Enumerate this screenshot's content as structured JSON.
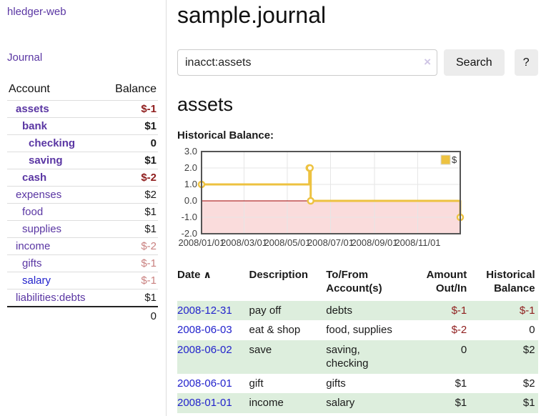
{
  "app": {
    "title": "hledger-web"
  },
  "sidebar": {
    "journal_label": "Journal",
    "accounts_table": {
      "headers": [
        "Account",
        "Balance"
      ],
      "rows": [
        {
          "name": "assets",
          "depth": 0,
          "bold": true,
          "blue": false,
          "balance": "$-1",
          "balance_color": "neg"
        },
        {
          "name": "bank",
          "depth": 1,
          "bold": true,
          "blue": false,
          "balance": "$1",
          "balance_color": ""
        },
        {
          "name": "checking",
          "depth": 2,
          "bold": true,
          "blue": false,
          "balance": "0",
          "balance_color": ""
        },
        {
          "name": "saving",
          "depth": 2,
          "bold": true,
          "blue": false,
          "balance": "$1",
          "balance_color": ""
        },
        {
          "name": "cash",
          "depth": 1,
          "bold": true,
          "blue": false,
          "balance": "$-2",
          "balance_color": "neg"
        },
        {
          "name": "expenses",
          "depth": 0,
          "bold": false,
          "blue": false,
          "balance": "$2",
          "balance_color": ""
        },
        {
          "name": "food",
          "depth": 1,
          "bold": false,
          "blue": false,
          "balance": "$1",
          "balance_color": ""
        },
        {
          "name": "supplies",
          "depth": 1,
          "bold": false,
          "blue": false,
          "balance": "$1",
          "balance_color": ""
        },
        {
          "name": "income",
          "depth": 0,
          "bold": false,
          "blue": false,
          "balance": "$-2",
          "balance_color": "negsoft"
        },
        {
          "name": "gifts",
          "depth": 1,
          "bold": false,
          "blue": false,
          "balance": "$-1",
          "balance_color": "negsoft"
        },
        {
          "name": "salary",
          "depth": 1,
          "bold": false,
          "blue": true,
          "balance": "$-1",
          "balance_color": "negsoft"
        },
        {
          "name": "liabilities:debts",
          "depth": 0,
          "bold": false,
          "blue": false,
          "balance": "$1",
          "balance_color": ""
        }
      ],
      "total": "0"
    }
  },
  "main": {
    "title": "sample.journal",
    "search": {
      "value": "inacct:assets",
      "clear_icon": "×",
      "button_label": "Search",
      "help_label": "?"
    },
    "account_heading": "assets",
    "chart_heading": "Historical Balance:"
  },
  "chart_data": {
    "type": "line",
    "title": "Historical Balance",
    "step": true,
    "series": [
      {
        "name": "$",
        "color": "#edc240",
        "points": [
          [
            "2008-01-01",
            1
          ],
          [
            "2008-06-01",
            2
          ],
          [
            "2008-06-02",
            2
          ],
          [
            "2008-06-03",
            0
          ],
          [
            "2008-12-31",
            -1
          ]
        ]
      }
    ],
    "x_range": [
      "2008-01-01",
      "2008-12-31"
    ],
    "x_ticks": [
      [
        "2008-01-01",
        "2008/01/01"
      ],
      [
        "2008-03-01",
        "2008/03/01"
      ],
      [
        "2008-05-01",
        "2008/05/01"
      ],
      [
        "2008-07-01",
        "2008/07/01"
      ],
      [
        "2008-09-01",
        "2008/09/01"
      ],
      [
        "2008-11-01",
        "2008/11/01"
      ]
    ],
    "y_ticks": [
      "3.0",
      "2.0",
      "1.0",
      "0.0",
      "-1.0",
      "-2.0"
    ],
    "ylim": [
      -2,
      3
    ],
    "grid": true,
    "legend": {
      "label": "$",
      "position": "top-right"
    },
    "negative_region_color": "#fadcdc",
    "zero_line_color": "#a00000"
  },
  "transactions": {
    "sort_icon": "∧",
    "headers": [
      "Date",
      "Description",
      "To/From Account(s)",
      "Amount Out/In",
      "Historical Balance"
    ],
    "rows": [
      {
        "date": "2008-12-31",
        "description": "pay off",
        "accounts": "debts",
        "amount": "$-1",
        "amount_negative": true,
        "balance": "$-1",
        "balance_negative": true
      },
      {
        "date": "2008-06-03",
        "description": "eat & shop",
        "accounts": "food, supplies",
        "amount": "$-2",
        "amount_negative": true,
        "balance": "0",
        "balance_negative": false
      },
      {
        "date": "2008-06-02",
        "description": "save",
        "accounts": "saving, checking",
        "amount": "0",
        "amount_negative": false,
        "balance": "$2",
        "balance_negative": false
      },
      {
        "date": "2008-06-01",
        "description": "gift",
        "accounts": "gifts",
        "amount": "$1",
        "amount_negative": false,
        "balance": "$2",
        "balance_negative": false
      },
      {
        "date": "2008-01-01",
        "description": "income",
        "accounts": "salary",
        "amount": "$1",
        "amount_negative": false,
        "balance": "$1",
        "balance_negative": false
      }
    ]
  }
}
